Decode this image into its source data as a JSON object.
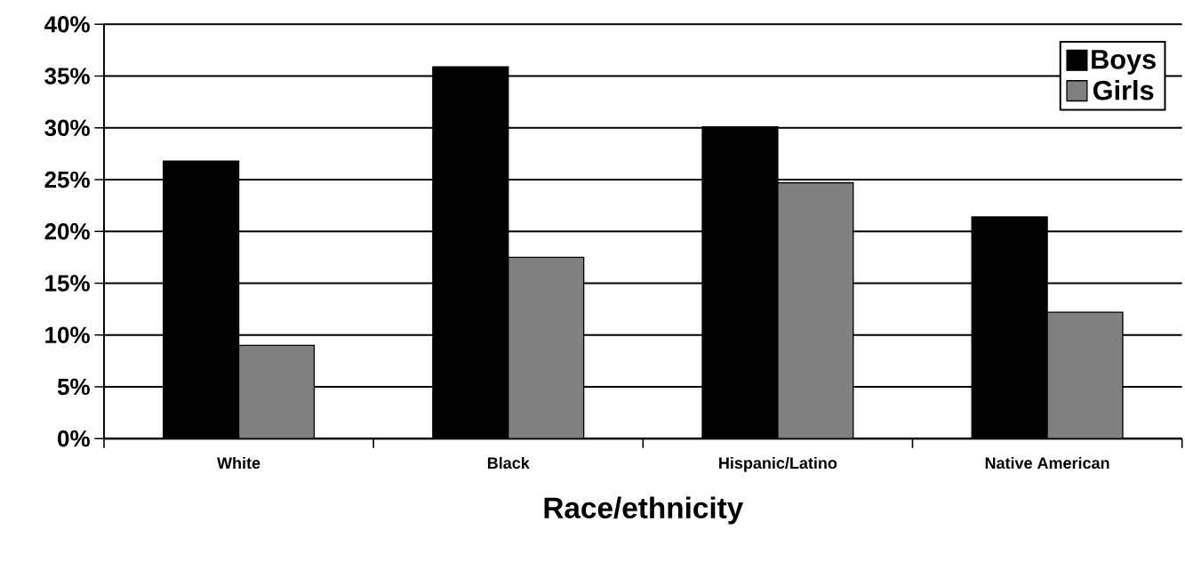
{
  "chart_data": {
    "type": "bar",
    "xlabel": "Race/ethnicity",
    "categories": [
      "White",
      "Black",
      "Hispanic/Latino",
      "Native American"
    ],
    "series": [
      {
        "name": "Boys",
        "color": "#000000",
        "values": [
          26.8,
          35.9,
          30.1,
          21.4
        ]
      },
      {
        "name": "Girls",
        "color": "#808080",
        "values": [
          9.0,
          17.5,
          24.7,
          12.2
        ]
      }
    ],
    "ylim": [
      0,
      40
    ],
    "yticks": [
      {
        "value": 0,
        "label": "0%"
      },
      {
        "value": 5,
        "label": "5%"
      },
      {
        "value": 10,
        "label": "10%"
      },
      {
        "value": 15,
        "label": "15%"
      },
      {
        "value": 20,
        "label": "20%"
      },
      {
        "value": 25,
        "label": "25%"
      },
      {
        "value": 30,
        "label": "30%"
      },
      {
        "value": 35,
        "label": "35%"
      },
      {
        "value": 40,
        "label": "40%"
      }
    ],
    "grid": "y",
    "legend": "top right"
  }
}
